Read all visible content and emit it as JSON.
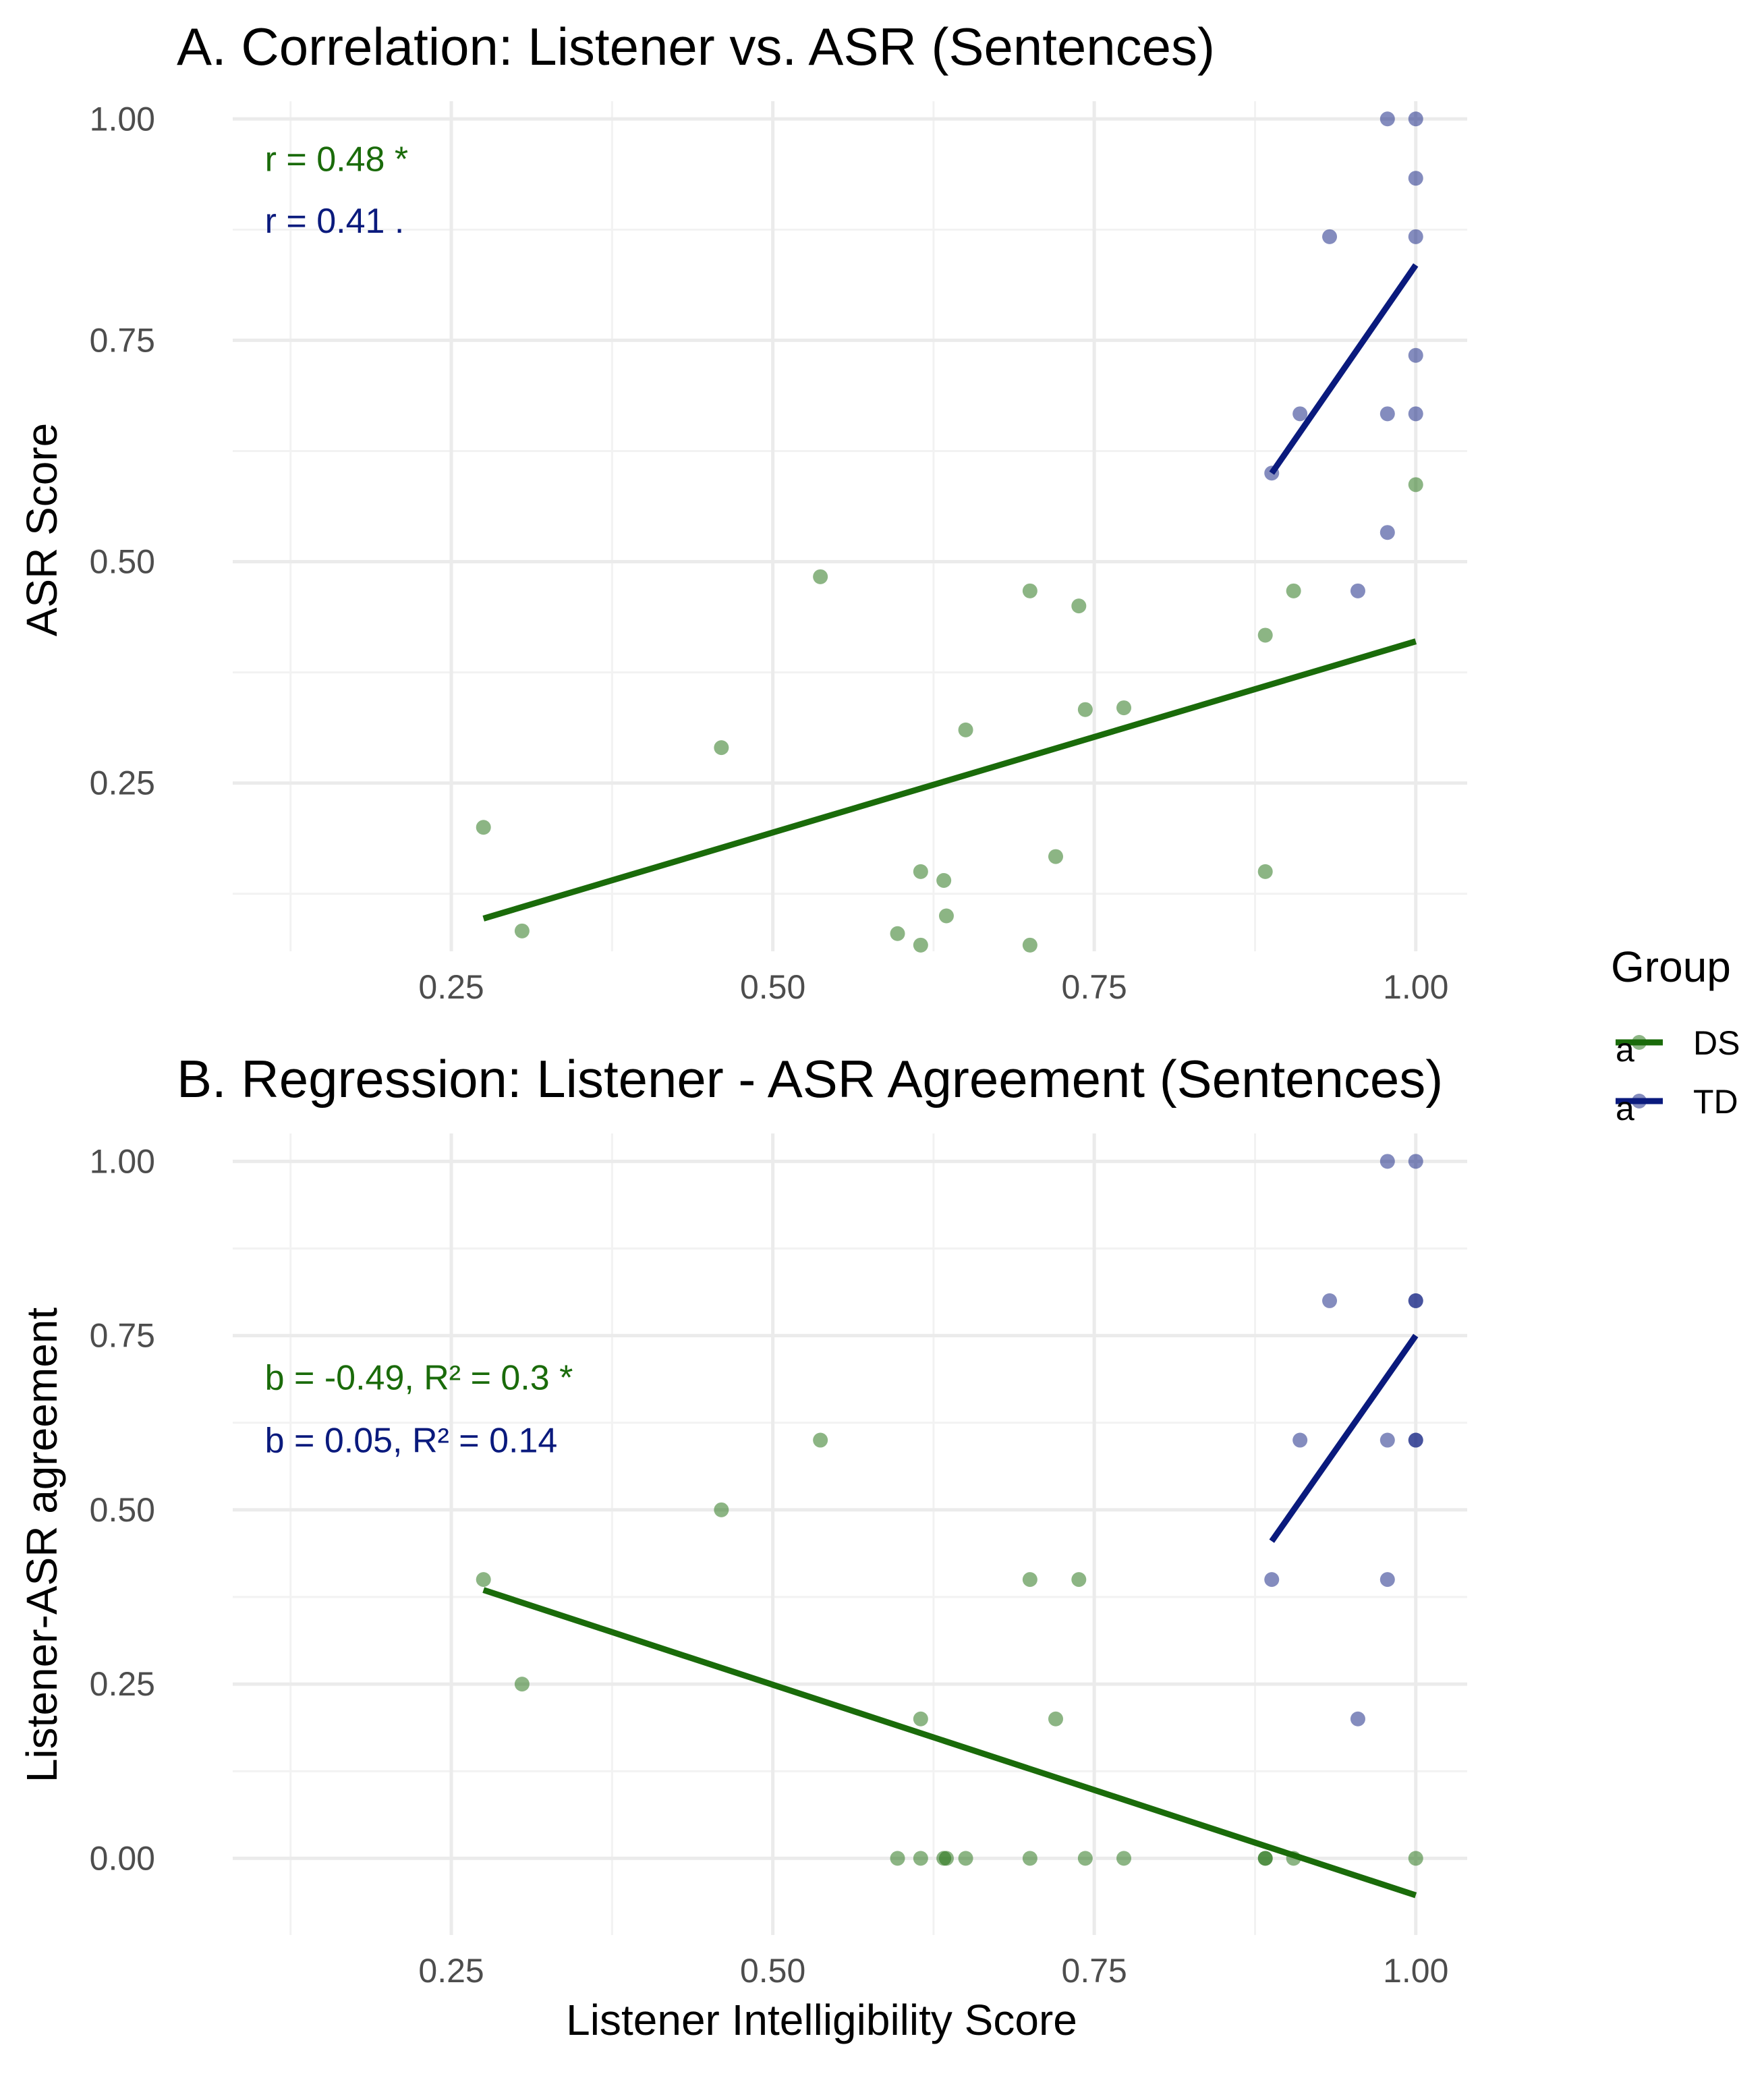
{
  "colors": {
    "DS": "#1a6b0a",
    "TD": "#0a1a7d"
  },
  "legend": {
    "title": "Group",
    "entries": [
      {
        "name": "DS",
        "key_glyph": "a",
        "color": "#1a6b0a"
      },
      {
        "name": "TD",
        "key_glyph": "a",
        "color": "#0a1a7d"
      }
    ]
  },
  "chart_data": [
    {
      "type": "scatter",
      "panel": "A",
      "title": "A. Correlation: Listener vs. ASR (Sentences)",
      "xlabel": "",
      "ylabel": "ASR Score",
      "xlim": [
        0.08,
        1.04
      ],
      "ylim": [
        0.06,
        1.02
      ],
      "x_ticks": [
        0.25,
        0.5,
        0.75,
        1.0
      ],
      "x_tick_labels": [
        "0.25",
        "0.50",
        "0.75",
        "1.00"
      ],
      "y_ticks": [
        0.25,
        0.5,
        0.75,
        1.0
      ],
      "y_tick_labels": [
        "0.25",
        "0.50",
        "0.75",
        "1.00"
      ],
      "series": [
        {
          "name": "DS",
          "points": [
            [
              0.275,
              0.2
            ],
            [
              0.305,
              0.083
            ],
            [
              0.46,
              0.29
            ],
            [
              0.537,
              0.483
            ],
            [
              0.597,
              0.08
            ],
            [
              0.615,
              0.15
            ],
            [
              0.615,
              0.067
            ],
            [
              0.633,
              0.14
            ],
            [
              0.635,
              0.1
            ],
            [
              0.65,
              0.31
            ],
            [
              0.7,
              0.467
            ],
            [
              0.7,
              0.067
            ],
            [
              0.72,
              0.167
            ],
            [
              0.738,
              0.45
            ],
            [
              0.743,
              0.333
            ],
            [
              0.773,
              0.335
            ],
            [
              0.883,
              0.417
            ],
            [
              0.883,
              0.15
            ],
            [
              0.905,
              0.467
            ],
            [
              1.0,
              0.587
            ]
          ],
          "fit": {
            "x": [
              0.275,
              1.0
            ],
            "y": [
              0.097,
              0.41
            ]
          }
        },
        {
          "name": "TD",
          "points": [
            [
              0.888,
              0.6
            ],
            [
              0.91,
              0.667
            ],
            [
              0.933,
              0.867
            ],
            [
              0.955,
              0.467
            ],
            [
              0.978,
              0.533
            ],
            [
              0.978,
              0.667
            ],
            [
              0.978,
              1.0
            ],
            [
              1.0,
              1.0
            ],
            [
              1.0,
              0.933
            ],
            [
              1.0,
              0.867
            ],
            [
              1.0,
              0.733
            ],
            [
              1.0,
              0.667
            ]
          ],
          "fit": {
            "x": [
              0.888,
              1.0
            ],
            "y": [
              0.6,
              0.835
            ]
          }
        }
      ],
      "annotations": [
        {
          "text": "r = 0.48 *",
          "group": "DS",
          "x": 0.105,
          "y": 0.955
        },
        {
          "text": "r = 0.41 .",
          "group": "TD",
          "x": 0.105,
          "y": 0.885
        }
      ]
    },
    {
      "type": "scatter",
      "panel": "B",
      "title": "B. Regression: Listener - ASR Agreement (Sentences)",
      "xlabel": "Listener Intelligibility Score",
      "ylabel": "Listener-ASR agreement",
      "xlim": [
        0.08,
        1.04
      ],
      "ylim": [
        -0.11,
        1.04
      ],
      "x_ticks": [
        0.25,
        0.5,
        0.75,
        1.0
      ],
      "x_tick_labels": [
        "0.25",
        "0.50",
        "0.75",
        "1.00"
      ],
      "y_ticks": [
        0.0,
        0.25,
        0.5,
        0.75,
        1.0
      ],
      "y_tick_labels": [
        "0.00",
        "0.25",
        "0.50",
        "0.75",
        "1.00"
      ],
      "series": [
        {
          "name": "DS",
          "points": [
            [
              0.275,
              0.4
            ],
            [
              0.305,
              0.25
            ],
            [
              0.46,
              0.5
            ],
            [
              0.537,
              0.6
            ],
            [
              0.597,
              0.0
            ],
            [
              0.615,
              0.0
            ],
            [
              0.615,
              0.2
            ],
            [
              0.633,
              0.0
            ],
            [
              0.635,
              0.0
            ],
            [
              0.65,
              0.0
            ],
            [
              0.7,
              0.4
            ],
            [
              0.7,
              0.0
            ],
            [
              0.72,
              0.2
            ],
            [
              0.738,
              0.4
            ],
            [
              0.743,
              0.0
            ],
            [
              0.773,
              0.0
            ],
            [
              0.883,
              0.0
            ],
            [
              0.883,
              0.0
            ],
            [
              0.905,
              0.0
            ],
            [
              1.0,
              0.0
            ]
          ],
          "fit": {
            "x": [
              0.275,
              1.0
            ],
            "y": [
              0.385,
              -0.053
            ]
          }
        },
        {
          "name": "TD",
          "points": [
            [
              0.888,
              0.4
            ],
            [
              0.91,
              0.6
            ],
            [
              0.933,
              0.8
            ],
            [
              0.955,
              0.2
            ],
            [
              0.978,
              0.4
            ],
            [
              0.978,
              0.6
            ],
            [
              0.978,
              1.0
            ],
            [
              1.0,
              1.0
            ],
            [
              1.0,
              0.8
            ],
            [
              1.0,
              0.8
            ],
            [
              1.0,
              0.6
            ],
            [
              1.0,
              0.6
            ]
          ],
          "fit": {
            "x": [
              0.888,
              1.0
            ],
            "y": [
              0.455,
              0.75
            ]
          }
        }
      ],
      "annotations": [
        {
          "text": "b = -0.49, R² = 0.3 *",
          "group": "DS",
          "x": 0.105,
          "y": 0.69
        },
        {
          "text": "b = 0.05, R² = 0.14",
          "group": "TD",
          "x": 0.105,
          "y": 0.6
        }
      ]
    }
  ]
}
